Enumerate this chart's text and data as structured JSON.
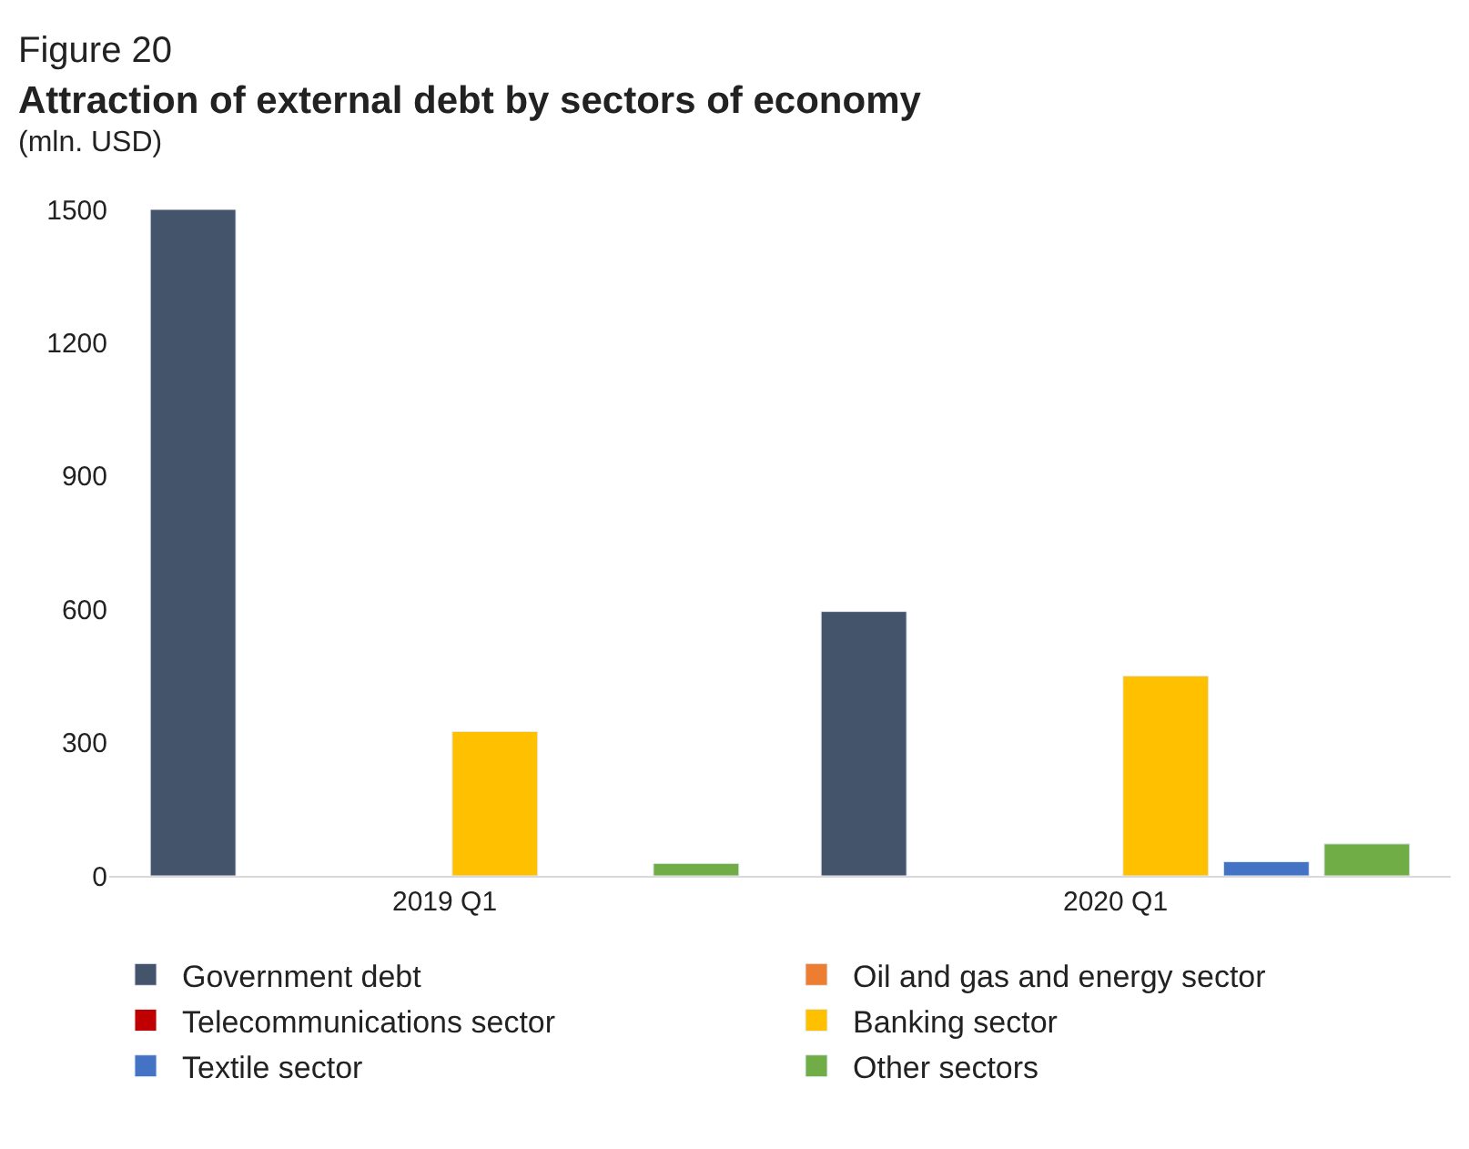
{
  "chart_data": {
    "type": "bar",
    "title": "Figure 20",
    "subtitle": "Attraction of external debt by sectors of economy",
    "ylabel": "(mln. USD)",
    "categories": [
      "2019 Q1",
      "2020 Q1"
    ],
    "series": [
      {
        "name": "Government debt",
        "color": "#44546a",
        "values": [
          1500,
          595
        ]
      },
      {
        "name": "Oil and gas and energy sector",
        "color": "#ed7d31",
        "values": [
          null,
          null
        ]
      },
      {
        "name": "Telecommunications sector",
        "color": "#c00000",
        "values": [
          null,
          null
        ]
      },
      {
        "name": "Banking sector",
        "color": "#ffc000",
        "values": [
          325,
          450
        ]
      },
      {
        "name": "Textile sector",
        "color": "#4472c4",
        "values": [
          null,
          32
        ]
      },
      {
        "name": "Other sectors",
        "color": "#70ad47",
        "values": [
          28,
          72
        ]
      }
    ],
    "ylim": [
      0,
      1500
    ],
    "yticks": [
      0,
      300,
      600,
      900,
      1200,
      1500
    ],
    "grid": false,
    "legend": "bottom"
  }
}
